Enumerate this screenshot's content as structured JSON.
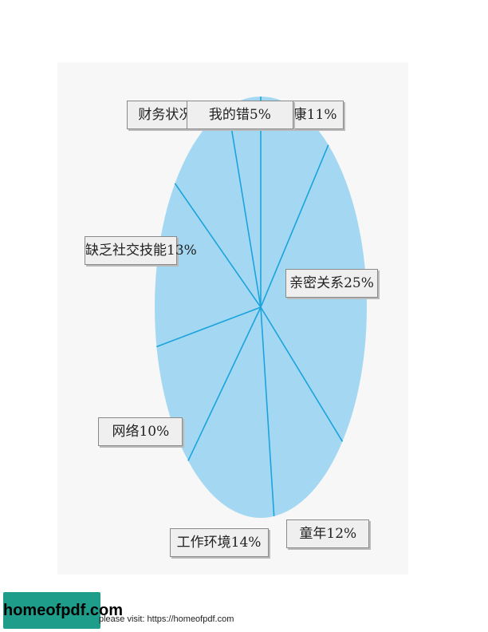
{
  "chart_data": {
    "type": "pie",
    "slices": [
      {
        "label": "健康11%",
        "category": "健康",
        "value": 11
      },
      {
        "label": "亲密关系25%",
        "category": "亲密关系",
        "value": 25
      },
      {
        "label": "童年12%",
        "category": "童年",
        "value": 12
      },
      {
        "label": "工作环境14%",
        "category": "工作环境",
        "value": 14
      },
      {
        "label": "网络10%",
        "category": "网络",
        "value": 10
      },
      {
        "label": "缺乏社交技能13%",
        "category": "缺乏社交技能",
        "value": 13
      },
      {
        "label": "财务状况10%",
        "category": "财务状况",
        "value": 10
      },
      {
        "label": "我的错5%",
        "category": "我的错",
        "value": 5
      }
    ],
    "start": "top",
    "direction": "clockwise",
    "colors": {
      "fill": "#a4d8f2",
      "divider": "#1aa3dc"
    }
  },
  "footer": {
    "logo": "homeofpdf.com",
    "text": "please visit: https://homeofpdf.com"
  }
}
